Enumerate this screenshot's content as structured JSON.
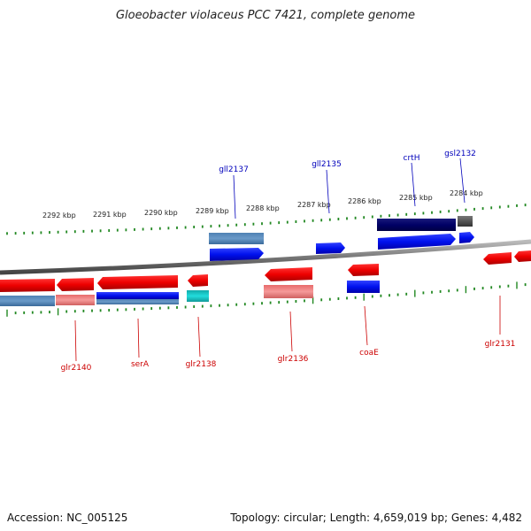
{
  "title": "Gloeobacter violaceus PCC 7421, complete genome",
  "footer": {
    "accession": "Accession: NC_005125",
    "topology": "Topology: circular; Length: 4,659,019 bp; Genes: 4,482"
  },
  "colors": {
    "reverse_strand": "#d40000",
    "forward_strand": "#0000dd",
    "label_reverse": "#cc0000",
    "label_forward": "#0000bb",
    "tick": "#228822",
    "backbone": "#888888"
  },
  "scale_labels": [
    "2292 kbp",
    "2291 kbp",
    "2290 kbp",
    "2289 kbp",
    "2288 kbp",
    "2287 kbp",
    "2286 kbp",
    "2285 kbp",
    "2284 kbp"
  ],
  "gene_labels_top": [
    {
      "name": "gll2137"
    },
    {
      "name": "gll2135"
    },
    {
      "name": "crtH"
    },
    {
      "name": "gsl2132"
    }
  ],
  "gene_labels_bottom": [
    {
      "name": "glr2140"
    },
    {
      "name": "serA"
    },
    {
      "name": "glr2138"
    },
    {
      "name": "glr2136"
    },
    {
      "name": "coaE"
    },
    {
      "name": "glr2131"
    }
  ]
}
